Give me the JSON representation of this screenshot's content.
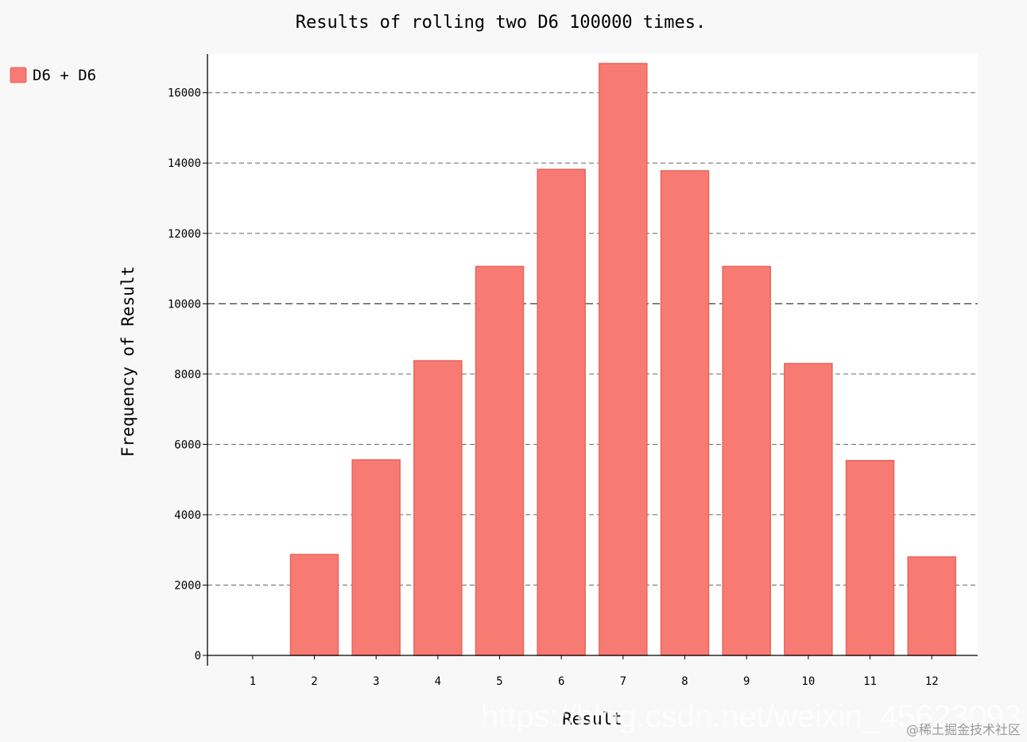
{
  "chart_data": {
    "type": "bar",
    "title": "Results of rolling two D6 100000 times.",
    "xlabel": "Result",
    "ylabel": "Frequency of Result",
    "categories": [
      "1",
      "2",
      "3",
      "4",
      "5",
      "6",
      "7",
      "8",
      "9",
      "10",
      "11",
      "12"
    ],
    "series": [
      {
        "name": "D6 + D6",
        "color": "#f77b72",
        "stroke": "#e8645a",
        "values": [
          null,
          2870,
          5560,
          8380,
          11060,
          13820,
          16830,
          13780,
          11060,
          8300,
          5540,
          2800
        ]
      }
    ],
    "ylim": [
      0,
      17100
    ],
    "yticks": [
      0,
      2000,
      4000,
      6000,
      8000,
      10000,
      12000,
      14000,
      16000
    ],
    "major_grid": 10000,
    "grid": true,
    "legend_position": "top-left"
  },
  "watermark": {
    "url": "https://blog.csdn.net/weixin_45623093",
    "site": "@稀土掘金技术社区"
  }
}
